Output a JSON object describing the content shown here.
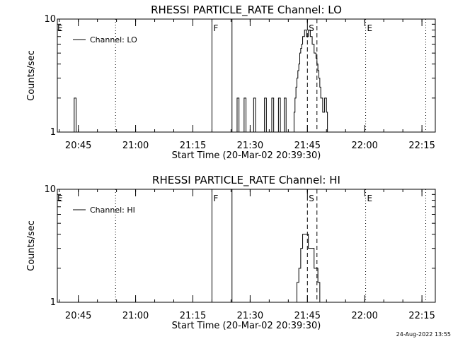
{
  "footer_timestamp": "24-Aug-2022 13:55",
  "chart_data": [
    {
      "type": "line",
      "title": "RHESSI PARTICLE_RATE Channel: LO",
      "xlabel": "Start Time (20-Mar-02 20:39:30)",
      "ylabel": "Counts/sec",
      "yscale": "log",
      "ylim": [
        1,
        10
      ],
      "xlim": [
        "20:39:30",
        "22:18:30"
      ],
      "x_ticks": [
        "20:45",
        "21:00",
        "21:15",
        "21:30",
        "21:45",
        "22:00",
        "22:15"
      ],
      "y_ticks": [
        "1",
        "10"
      ],
      "legend": {
        "label": "Channel: LO",
        "position": "top-left"
      },
      "series": [
        {
          "name": "Channel: LO",
          "x": [
            "20:39:30",
            "20:43:40",
            "20:43:55",
            "20:44:10",
            "20:44:25",
            "21:26:20",
            "21:26:35",
            "21:26:50",
            "21:27:05",
            "21:28:10",
            "21:28:25",
            "21:28:40",
            "21:28:55",
            "21:30:40",
            "21:30:55",
            "21:31:10",
            "21:31:25",
            "21:33:30",
            "21:33:45",
            "21:34:00",
            "21:34:15",
            "21:35:25",
            "21:35:40",
            "21:35:55",
            "21:36:10",
            "21:37:10",
            "21:37:25",
            "21:37:40",
            "21:37:55",
            "21:38:40",
            "21:38:55",
            "21:39:10",
            "21:39:25",
            "21:41:15",
            "21:41:30",
            "21:41:45",
            "21:42:00",
            "21:42:15",
            "21:42:30",
            "21:42:45",
            "21:43:00",
            "21:43:15",
            "21:43:30",
            "21:43:45",
            "21:44:00",
            "21:44:15",
            "21:44:30",
            "21:44:45",
            "21:45:00",
            "21:45:15",
            "21:45:30",
            "21:45:45",
            "21:46:00",
            "21:46:15",
            "21:46:30",
            "21:46:45",
            "21:47:00",
            "21:47:15",
            "21:47:30",
            "21:47:45",
            "21:48:00",
            "21:48:15",
            "21:48:30",
            "21:48:45",
            "21:49:00",
            "21:49:15",
            "21:49:30",
            "21:49:45",
            "21:50:00",
            "21:50:15",
            "21:50:30",
            "22:18:30"
          ],
          "values": [
            1,
            1,
            2,
            2,
            1,
            1,
            2,
            2,
            1,
            1,
            2,
            2,
            1,
            1,
            2,
            2,
            1,
            1,
            2,
            2,
            1,
            1,
            2,
            2,
            1,
            1,
            2,
            2,
            1,
            1,
            2,
            2,
            1,
            1,
            1.5,
            2,
            2.5,
            3,
            3.5,
            4,
            5,
            5.5,
            6,
            7,
            7,
            8,
            8,
            7,
            7,
            8,
            8,
            7,
            7,
            6,
            6,
            5,
            5,
            4.5,
            4,
            3.5,
            3,
            2.5,
            2,
            2,
            1.5,
            1.5,
            2,
            2,
            1.5,
            1,
            1,
            1
          ]
        }
      ],
      "annotations": [
        {
          "text": "E",
          "time": "20:39:30",
          "line": "none"
        },
        {
          "text": "F",
          "time": "21:20:00",
          "line": "solid"
        },
        {
          "text": "",
          "time": "21:25:15",
          "line": "solid"
        },
        {
          "text": "",
          "time": "20:54:45",
          "line": "dotted"
        },
        {
          "text": "S",
          "time": "21:45:00",
          "line": "dashed"
        },
        {
          "text": "",
          "time": "21:47:30",
          "line": "dashed"
        },
        {
          "text": "E",
          "time": "22:00:15",
          "line": "dotted"
        },
        {
          "text": "",
          "time": "22:16:00",
          "line": "dotted"
        }
      ]
    },
    {
      "type": "line",
      "title": "RHESSI PARTICLE_RATE Channel: HI",
      "xlabel": "Start Time (20-Mar-02 20:39:30)",
      "ylabel": "Counts/sec",
      "yscale": "log",
      "ylim": [
        1,
        10
      ],
      "xlim": [
        "20:39:30",
        "22:18:30"
      ],
      "x_ticks": [
        "20:45",
        "21:00",
        "21:15",
        "21:30",
        "21:45",
        "22:00",
        "22:15"
      ],
      "y_ticks": [
        "1",
        "10"
      ],
      "legend": {
        "label": "Channel: HI",
        "position": "top-left"
      },
      "series": [
        {
          "name": "Channel: HI",
          "x": [
            "20:39:30",
            "21:42:00",
            "21:42:15",
            "21:42:30",
            "21:42:45",
            "21:43:00",
            "21:43:15",
            "21:43:30",
            "21:43:45",
            "21:44:00",
            "21:44:15",
            "21:44:30",
            "21:44:45",
            "21:45:00",
            "21:45:15",
            "21:45:30",
            "21:45:45",
            "21:46:00",
            "21:46:15",
            "21:46:30",
            "21:46:45",
            "21:47:00",
            "21:47:15",
            "21:47:30",
            "21:47:45",
            "21:48:00",
            "21:48:15",
            "21:48:30",
            "21:48:45",
            "21:49:00",
            "21:49:15",
            "22:18:30"
          ],
          "values": [
            1,
            1,
            1.5,
            1.5,
            2,
            2,
            3,
            3,
            4,
            4,
            4,
            4,
            4,
            4,
            3,
            3,
            3,
            3,
            3,
            3,
            2,
            2,
            2,
            2,
            1.5,
            1.5,
            1,
            1,
            1,
            1,
            1,
            1
          ]
        }
      ],
      "annotations": [
        {
          "text": "E",
          "time": "20:39:30",
          "line": "none"
        },
        {
          "text": "F",
          "time": "21:20:00",
          "line": "solid"
        },
        {
          "text": "",
          "time": "21:25:15",
          "line": "solid"
        },
        {
          "text": "",
          "time": "20:54:45",
          "line": "dotted"
        },
        {
          "text": "S",
          "time": "21:45:00",
          "line": "dashed"
        },
        {
          "text": "",
          "time": "21:47:30",
          "line": "dashed"
        },
        {
          "text": "E",
          "time": "22:00:15",
          "line": "dotted"
        },
        {
          "text": "",
          "time": "22:16:00",
          "line": "dotted"
        }
      ]
    }
  ]
}
